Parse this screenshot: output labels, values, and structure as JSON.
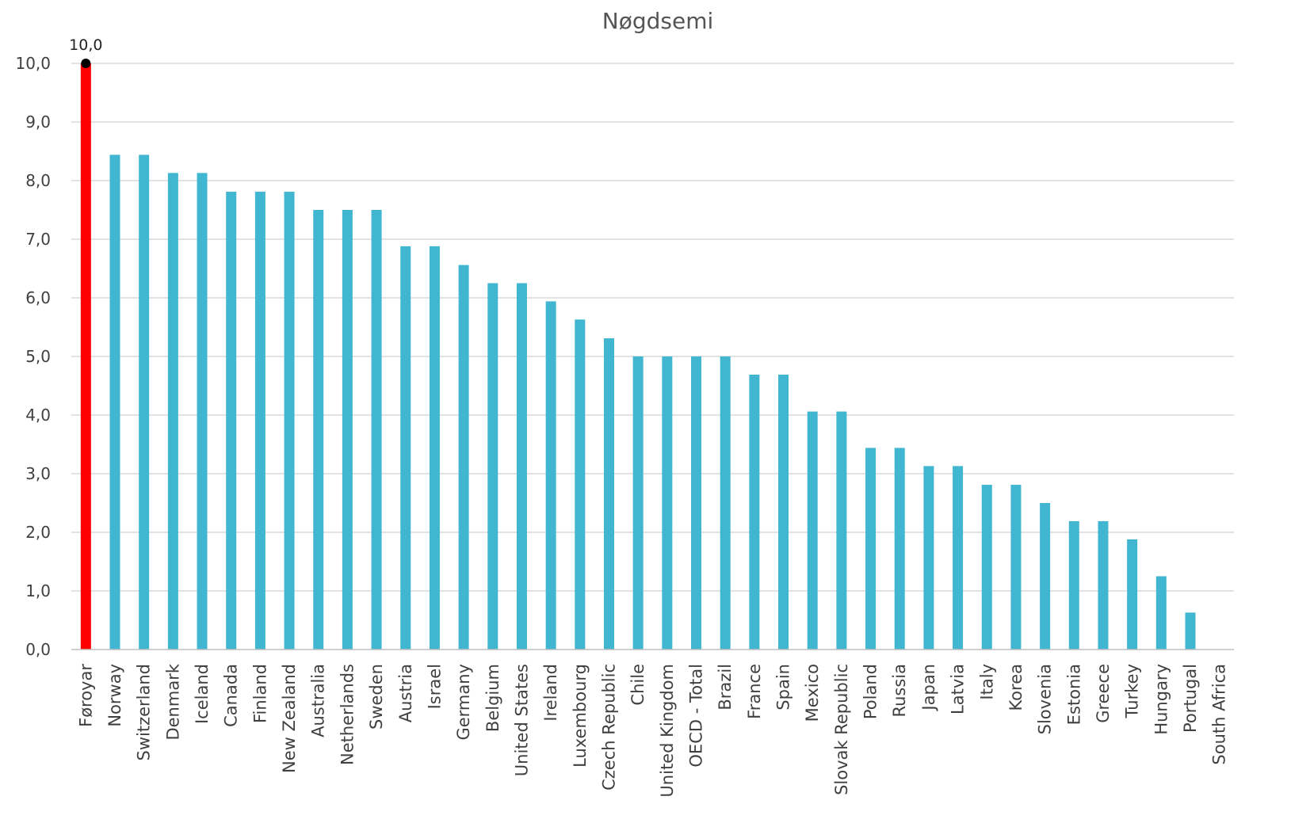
{
  "chart_data": {
    "type": "bar",
    "title": "Nøgdsemi",
    "xlabel": "",
    "ylabel": "",
    "ylim": [
      0,
      10
    ],
    "yticks": [
      "0,0",
      "1,0",
      "2,0",
      "3,0",
      "4,0",
      "5,0",
      "6,0",
      "7,0",
      "8,0",
      "9,0",
      "10,0"
    ],
    "grid": true,
    "legend": "none",
    "categories": [
      "Føroyar",
      "Norway",
      "Switzerland",
      "Denmark",
      "Iceland",
      "Canada",
      "Finland",
      "New Zealand",
      "Australia",
      "Netherlands",
      "Sweden",
      "Austria",
      "Israel",
      "Germany",
      "Belgium",
      "United States",
      "Ireland",
      "Luxembourg",
      "Czech Republic",
      "Chile",
      "United Kingdom",
      "OECD - Total",
      "Brazil",
      "France",
      "Spain",
      "Mexico",
      "Slovak Republic",
      "Poland",
      "Russia",
      "Japan",
      "Latvia",
      "Italy",
      "Korea",
      "Slovenia",
      "Estonia",
      "Greece",
      "Turkey",
      "Hungary",
      "Portugal",
      "South Africa"
    ],
    "values": [
      10.0,
      8.44,
      8.44,
      8.13,
      8.13,
      7.81,
      7.81,
      7.81,
      7.5,
      7.5,
      7.5,
      6.88,
      6.88,
      6.56,
      6.25,
      6.25,
      5.94,
      5.63,
      5.31,
      5.0,
      5.0,
      5.0,
      5.0,
      4.69,
      4.69,
      4.06,
      4.06,
      3.44,
      3.44,
      3.13,
      3.13,
      2.81,
      2.81,
      2.5,
      2.19,
      2.19,
      1.88,
      1.25,
      0.63,
      0.0
    ],
    "data_labels": [
      {
        "index": 0,
        "text": "10,0"
      }
    ],
    "colors": {
      "highlight": "#ff0000",
      "default": "#41b6d0",
      "marker": "#000000"
    }
  }
}
